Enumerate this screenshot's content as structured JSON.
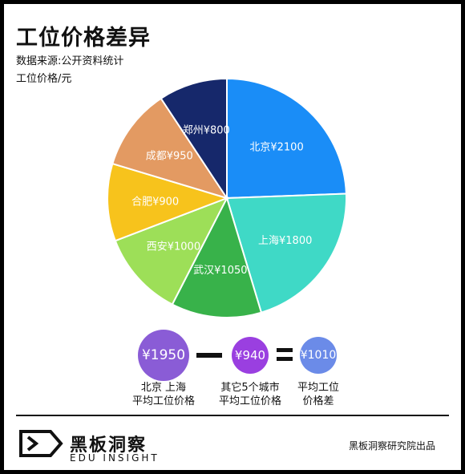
{
  "title": "工位价格差异",
  "source": "数据来源:公开资料统计",
  "unit": "工位价格/元",
  "chart_data": {
    "type": "pie",
    "categories": [
      "北京",
      "上海",
      "武汉",
      "西安",
      "合肥",
      "成都",
      "郑州"
    ],
    "values": [
      2100,
      1800,
      1050,
      1000,
      900,
      950,
      800
    ],
    "labels": [
      "北京¥2100",
      "上海¥1800",
      "武汉¥1050",
      "西安¥1000",
      "合肥¥900",
      "成都¥950",
      "郑州¥800"
    ],
    "colors": [
      "#1a8df7",
      "#3fd9c6",
      "#38b24a",
      "#9ddf58",
      "#f7c31c",
      "#e39a62",
      "#16286b"
    ]
  },
  "equation": {
    "a": {
      "value": "¥1950",
      "caption": "北京 上海\n平均工位价格",
      "color": "#8a5cd6"
    },
    "b": {
      "value": "¥940",
      "caption": "其它5个城市\n平均工位价格",
      "color": "#9a3fe0"
    },
    "c": {
      "value": "¥1010",
      "caption": "平均工位\n价格差",
      "color": "#6b8be8"
    }
  },
  "logo": {
    "cn": "黑板洞察",
    "en": "EDU INSIGHT"
  },
  "footer": "黑板洞察研究院出品"
}
